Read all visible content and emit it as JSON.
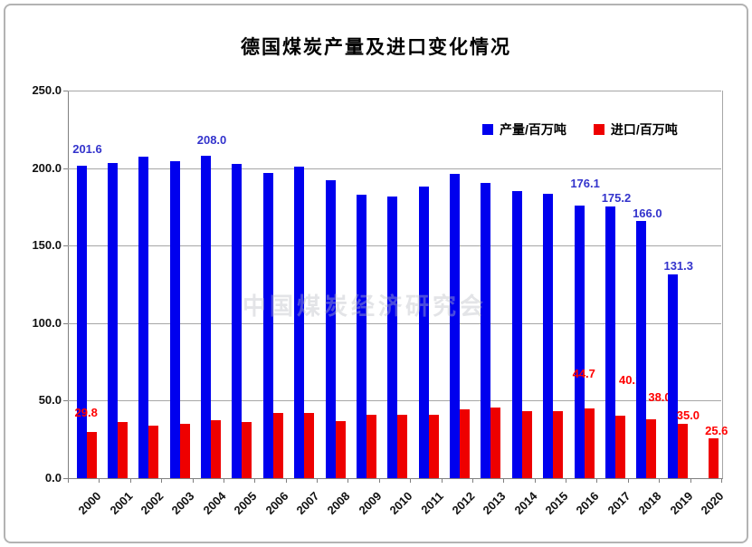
{
  "chart_data": {
    "type": "bar",
    "title": "德国煤炭产量及进口变化情况",
    "categories": [
      2000,
      2001,
      2002,
      2003,
      2004,
      2005,
      2006,
      2007,
      2008,
      2009,
      2010,
      2011,
      2012,
      2013,
      2014,
      2015,
      2016,
      2017,
      2018,
      2019,
      2020
    ],
    "series": [
      {
        "name": "产量/百万吨",
        "color": "#0000EE",
        "label_color": "#3333CC",
        "values": [
          201.6,
          203.0,
          207.5,
          204.5,
          208.0,
          202.5,
          197.0,
          201.0,
          192.0,
          183.0,
          181.5,
          188.0,
          196.0,
          190.5,
          185.0,
          183.5,
          176.1,
          175.2,
          166.0,
          131.3,
          null
        ],
        "labeled_years": [
          2000,
          2004,
          2016,
          2017,
          2018,
          2019
        ]
      },
      {
        "name": "进口/百万吨",
        "color": "#EE0000",
        "label_color": "#FF0000",
        "values": [
          29.8,
          36.0,
          34.0,
          35.0,
          37.5,
          36.5,
          42.0,
          42.0,
          37.0,
          41.0,
          41.0,
          41.0,
          44.5,
          45.5,
          43.5,
          43.5,
          44.7,
          40.1,
          38.0,
          35.0,
          25.6
        ],
        "labeled_years": [
          2000,
          2016,
          2017,
          2018,
          2019,
          2020
        ]
      }
    ],
    "ylim": [
      0,
      250
    ],
    "ytick_step": 50,
    "ytick_labels": [
      "0.0",
      "50.0",
      "100.0",
      "150.0",
      "200.0",
      "250.0"
    ],
    "grid": true,
    "legend_position": "top-right-inside",
    "axis_color": "#808080",
    "grid_color": "#A6A6A6",
    "watermark": "中国煤炭经济研究会"
  }
}
